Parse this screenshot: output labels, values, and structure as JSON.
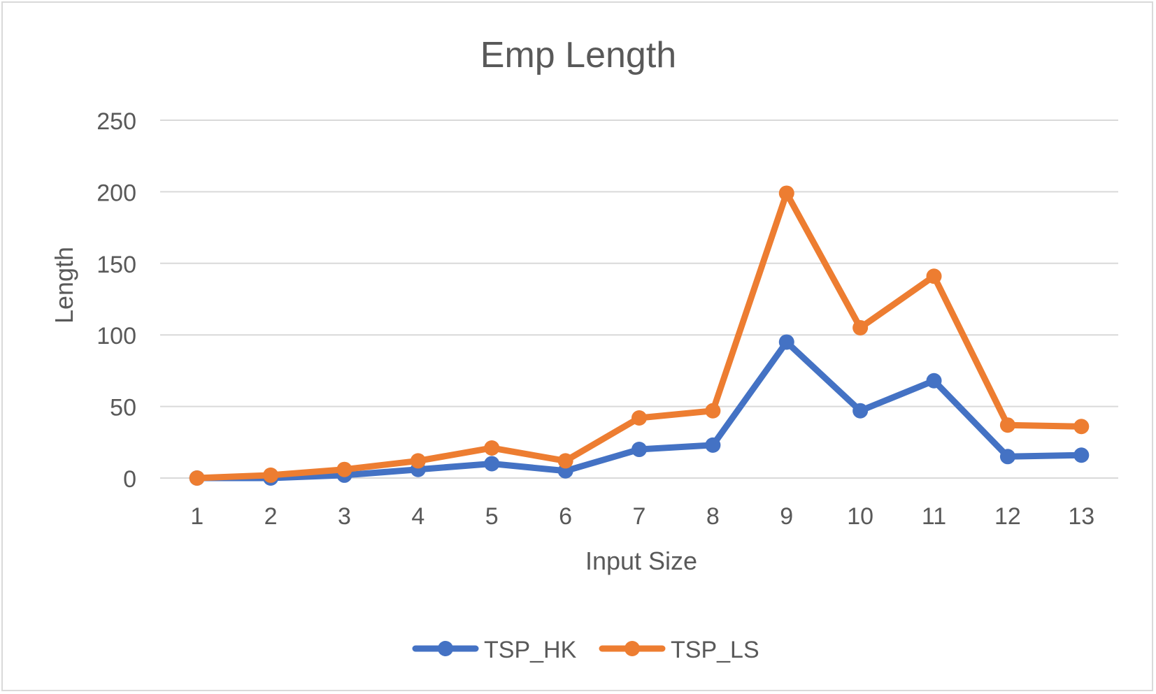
{
  "chart_data": {
    "type": "line",
    "title": "Emp Length",
    "xlabel": "Input Size",
    "ylabel": "Length",
    "x": [
      "1",
      "2",
      "3",
      "4",
      "5",
      "6",
      "7",
      "8",
      "9",
      "10",
      "11",
      "12",
      "13"
    ],
    "ylim": [
      0,
      250
    ],
    "yticks": [
      "0",
      "50",
      "100",
      "150",
      "200",
      "250"
    ],
    "grid": true,
    "legend_position": "bottom",
    "series": [
      {
        "name": "TSP_HK",
        "color": "#4472C4",
        "values": [
          0,
          0,
          2,
          6,
          10,
          5,
          20,
          23,
          95,
          47,
          68,
          15,
          16
        ]
      },
      {
        "name": "TSP_LS",
        "color": "#ED7D31",
        "values": [
          0,
          2,
          6,
          12,
          21,
          12,
          42,
          47,
          199,
          105,
          141,
          37,
          36
        ]
      }
    ]
  }
}
